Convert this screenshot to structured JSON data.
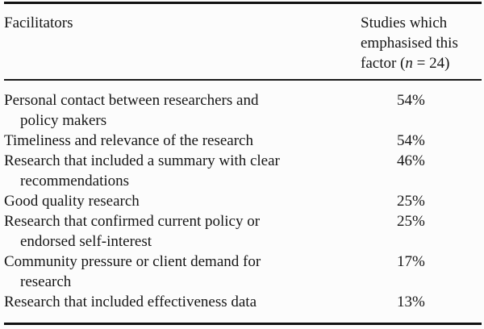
{
  "table": {
    "header": {
      "col1": "Facilitators",
      "col2_line1": "Studies which",
      "col2_line2": "emphasised this",
      "col2_line3_pre": "factor (",
      "col2_line3_n": "n",
      "col2_line3_post": " = 24)"
    },
    "rows": [
      {
        "lines": [
          "Personal contact between researchers and",
          "policy makers"
        ],
        "value": "54%"
      },
      {
        "lines": [
          "Timeliness and relevance of the research"
        ],
        "value": "54%"
      },
      {
        "lines": [
          "Research that included a summary with clear",
          "recommendations"
        ],
        "value": "46%"
      },
      {
        "lines": [
          "Good quality research"
        ],
        "value": "25%"
      },
      {
        "lines": [
          "Research that confirmed current policy or",
          "endorsed self-interest"
        ],
        "value": "25%"
      },
      {
        "lines": [
          "Community pressure or client demand for",
          "research"
        ],
        "value": "17%"
      },
      {
        "lines": [
          "Research that included effectiveness data"
        ],
        "value": "13%"
      }
    ],
    "colors": {
      "text": "#161616",
      "background": "#fcfcfc",
      "rule": "#111111"
    }
  }
}
